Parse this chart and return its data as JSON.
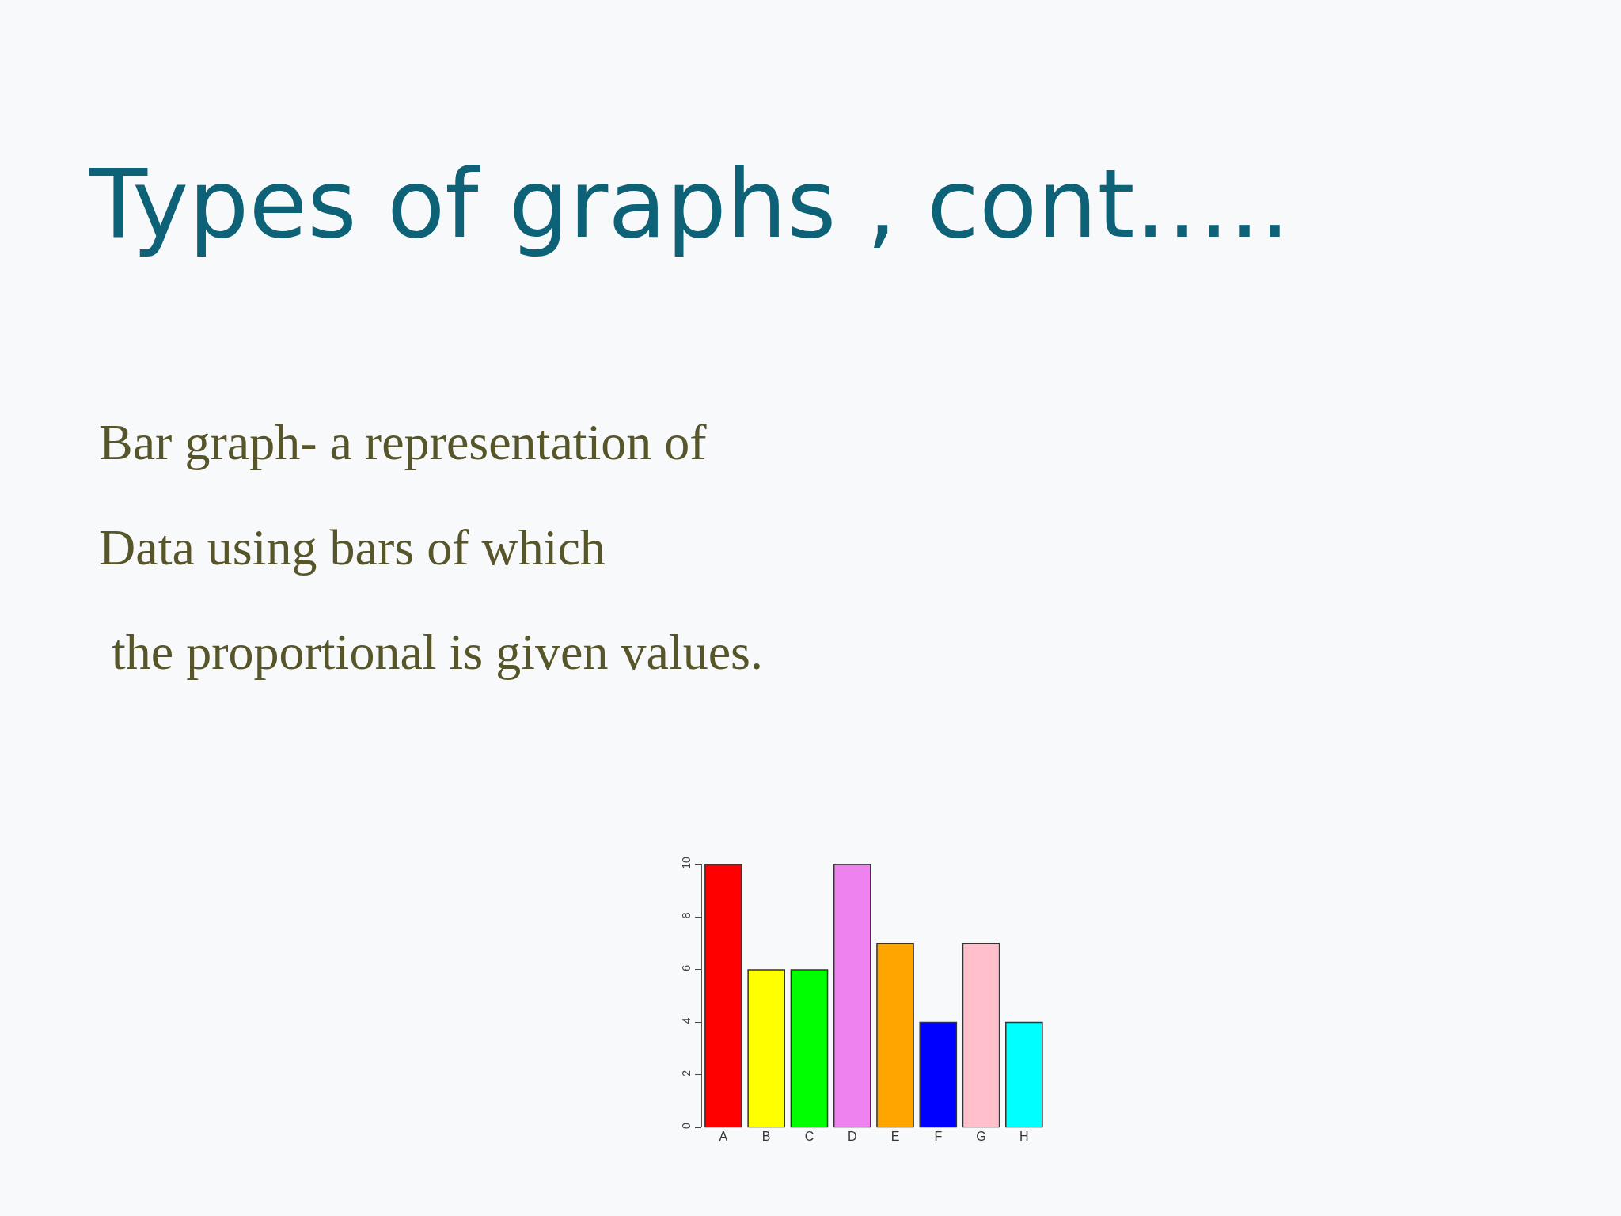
{
  "chart_data": {
    "type": "bar",
    "title": "Types of graphs , cont…..",
    "annotations": [
      "Bar graph- a representation of",
      "Data using bars of which",
      " the proportional is given values."
    ],
    "categories": [
      "A",
      "B",
      "C",
      "D",
      "E",
      "F",
      "G",
      "H"
    ],
    "values": [
      10,
      6,
      6,
      10,
      7,
      4,
      7,
      4
    ],
    "colors": [
      "#ff0000",
      "#ffff00",
      "#00ff00",
      "#ee82ee",
      "#ffa500",
      "#0000ff",
      "#ffc0cb",
      "#00ffff"
    ],
    "ylim": [
      0,
      10
    ],
    "yticks": [
      0,
      2,
      4,
      6,
      8,
      10
    ],
    "grid": false,
    "legend": false
  }
}
